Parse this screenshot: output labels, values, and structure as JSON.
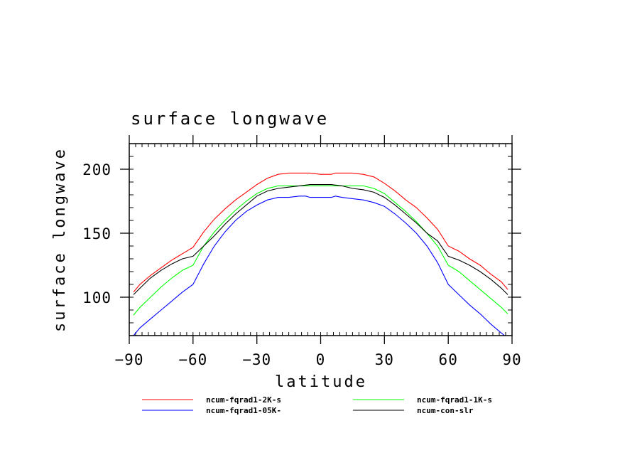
{
  "chart_data": {
    "type": "line",
    "title": "surface longwave",
    "xlabel": "latitude",
    "ylabel": "surface longwave",
    "xlim": [
      -90,
      90
    ],
    "ylim": [
      70,
      220
    ],
    "x_ticks": [
      -90,
      -60,
      -30,
      0,
      30,
      60,
      90
    ],
    "x_tick_labels": [
      "−90",
      "−60",
      "−30",
      "0",
      "30",
      "60",
      "90"
    ],
    "y_ticks": [
      100,
      150,
      200
    ],
    "y_tick_labels": [
      "100",
      "150",
      "200"
    ],
    "grid": false,
    "legend_position": "bottom",
    "series": [
      {
        "name": "ncum-fqrad1-2K-s",
        "color": "#ff0000",
        "x": [
          -88,
          -85,
          -80,
          -75,
          -70,
          -65,
          -60,
          -55,
          -50,
          -45,
          -40,
          -35,
          -30,
          -25,
          -20,
          -15,
          -10,
          -7,
          -5,
          0,
          5,
          7,
          10,
          15,
          20,
          25,
          30,
          35,
          40,
          45,
          50,
          55,
          60,
          65,
          70,
          75,
          80,
          85,
          88
        ],
        "y": [
          104,
          110,
          117,
          123,
          129,
          134,
          139,
          151,
          161,
          169,
          176,
          182,
          188,
          193,
          196,
          197,
          197,
          197,
          197,
          196,
          196,
          197,
          197,
          197,
          196,
          194,
          189,
          183,
          176,
          170,
          162,
          153,
          140,
          136,
          130,
          125,
          118,
          112,
          106
        ]
      },
      {
        "name": "ncum-fqrad1-1K-s",
        "color": "#00ff00",
        "x": [
          -88,
          -85,
          -80,
          -75,
          -70,
          -65,
          -60,
          -55,
          -50,
          -45,
          -40,
          -35,
          -30,
          -25,
          -20,
          -15,
          -10,
          -5,
          0,
          5,
          10,
          15,
          20,
          25,
          30,
          35,
          40,
          45,
          50,
          55,
          60,
          65,
          70,
          75,
          80,
          85,
          88
        ],
        "y": [
          86,
          92,
          100,
          108,
          115,
          121,
          125,
          140,
          151,
          160,
          168,
          175,
          181,
          185,
          187,
          187,
          187,
          187,
          187,
          187,
          187,
          187,
          187,
          185,
          181,
          174,
          167,
          159,
          150,
          140,
          125,
          120,
          113,
          106,
          99,
          92,
          87
        ]
      },
      {
        "name": "ncum-fqrad1-05K-",
        "color": "#0000ff",
        "x": [
          -88,
          -85,
          -80,
          -75,
          -70,
          -65,
          -60,
          -55,
          -50,
          -45,
          -40,
          -35,
          -30,
          -25,
          -20,
          -15,
          -10,
          -7,
          -5,
          0,
          5,
          7,
          10,
          15,
          20,
          25,
          30,
          35,
          40,
          45,
          50,
          55,
          60,
          65,
          70,
          75,
          80,
          85,
          88
        ],
        "y": [
          70,
          76,
          83,
          90,
          97,
          104,
          110,
          126,
          140,
          151,
          160,
          167,
          172,
          176,
          178,
          178,
          179,
          179,
          178,
          178,
          178,
          179,
          178,
          177,
          176,
          174,
          171,
          165,
          158,
          150,
          140,
          127,
          110,
          102,
          94,
          87,
          79,
          72,
          68
        ]
      },
      {
        "name": "ncum-con-slr",
        "color": "#000000",
        "x": [
          -88,
          -85,
          -80,
          -75,
          -70,
          -65,
          -60,
          -55,
          -50,
          -45,
          -40,
          -35,
          -30,
          -25,
          -20,
          -15,
          -10,
          -5,
          0,
          5,
          10,
          15,
          20,
          25,
          30,
          35,
          40,
          45,
          50,
          55,
          60,
          65,
          70,
          75,
          80,
          85,
          88
        ],
        "y": [
          102,
          107,
          115,
          121,
          126,
          130,
          132,
          140,
          148,
          157,
          165,
          172,
          179,
          183,
          185,
          186,
          187,
          188,
          188,
          188,
          187,
          185,
          184,
          182,
          178,
          172,
          165,
          158,
          150,
          144,
          132,
          129,
          125,
          120,
          114,
          107,
          102
        ]
      }
    ]
  }
}
